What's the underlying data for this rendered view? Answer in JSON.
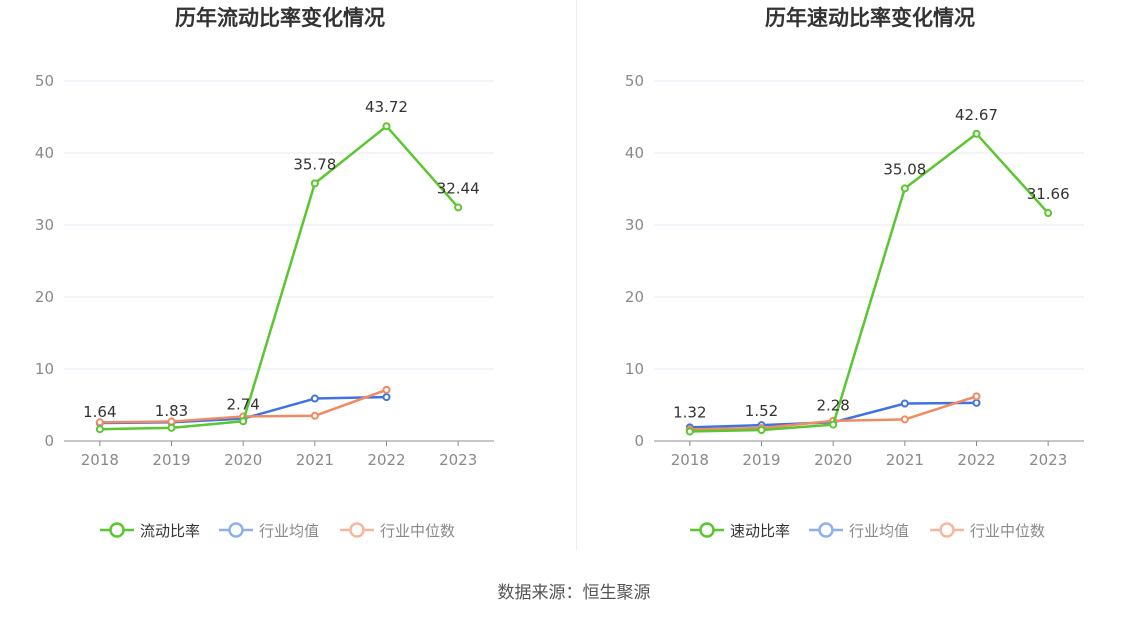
{
  "chart_data": [
    {
      "type": "line",
      "title": "历年流动比率变化情况",
      "categories": [
        "2018",
        "2019",
        "2020",
        "2021",
        "2022",
        "2023"
      ],
      "ylim": [
        0,
        50
      ],
      "yticks": [
        0,
        10,
        20,
        30,
        40,
        50
      ],
      "grid": true,
      "legend_position": "bottom",
      "series": [
        {
          "name": "流动比率",
          "color": "#5ac630",
          "values": [
            1.64,
            1.83,
            2.74,
            35.78,
            43.72,
            32.44
          ],
          "labels": [
            "1.64",
            "1.83",
            "2.74",
            "35.78",
            "43.72",
            "32.44"
          ]
        },
        {
          "name": "行业均值",
          "color": "#3f73e0",
          "values": [
            2.5,
            2.6,
            3.1,
            5.9,
            6.1,
            null
          ]
        },
        {
          "name": "行业中位数",
          "color": "#f08a62",
          "values": [
            2.6,
            2.7,
            3.4,
            3.5,
            7.1,
            null
          ]
        }
      ]
    },
    {
      "type": "line",
      "title": "历年速动比率变化情况",
      "categories": [
        "2018",
        "2019",
        "2020",
        "2021",
        "2022",
        "2023"
      ],
      "ylim": [
        0,
        50
      ],
      "yticks": [
        0,
        10,
        20,
        30,
        40,
        50
      ],
      "grid": true,
      "legend_position": "bottom",
      "series": [
        {
          "name": "速动比率",
          "color": "#5ac630",
          "values": [
            1.32,
            1.52,
            2.28,
            35.08,
            42.67,
            31.66
          ],
          "labels": [
            "1.32",
            "1.52",
            "2.28",
            "35.08",
            "42.67",
            "31.66"
          ]
        },
        {
          "name": "行业均值",
          "color": "#3f73e0",
          "values": [
            1.9,
            2.2,
            2.6,
            5.2,
            5.3,
            null
          ]
        },
        {
          "name": "行业中位数",
          "color": "#f08a62",
          "values": [
            1.6,
            1.8,
            2.8,
            3.0,
            6.2,
            null
          ]
        }
      ]
    }
  ],
  "source": "数据来源：恒生聚源"
}
